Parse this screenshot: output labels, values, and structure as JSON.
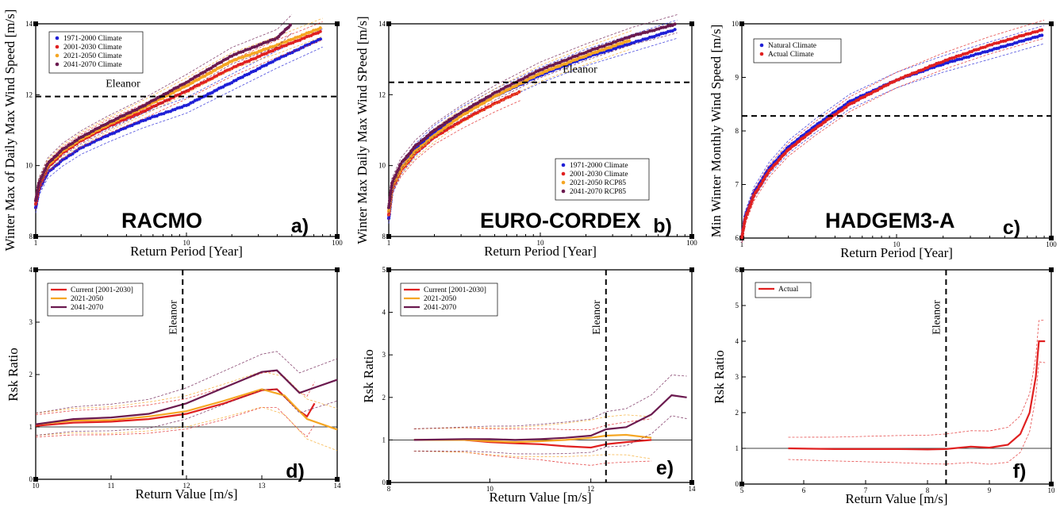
{
  "chart_data": [
    {
      "id": "a",
      "type": "scatter",
      "panel_label": "a)",
      "model_label": "RACMO",
      "xlabel": "Return Period [Year]",
      "ylabel": "Winter Max of Daily Max Wind Speed [m/s]",
      "xscale": "log",
      "xlim": [
        1,
        100
      ],
      "ylim": [
        8,
        14
      ],
      "xticks": [
        "1",
        "10",
        "100"
      ],
      "yticks": [
        "8",
        "10",
        "12",
        "14"
      ],
      "legend_position": "top-left",
      "hline": {
        "y": 11.95,
        "label": "Eleanor"
      },
      "series": [
        {
          "name": "1971-2000 Climate",
          "color": "#1f1fd6",
          "points": [
            [
              1.0,
              8.8
            ],
            [
              1.05,
              9.3
            ],
            [
              1.2,
              9.8
            ],
            [
              1.5,
              10.15
            ],
            [
              2,
              10.5
            ],
            [
              3,
              10.85
            ],
            [
              5,
              11.25
            ],
            [
              10,
              11.7
            ],
            [
              20,
              12.35
            ],
            [
              40,
              13.0
            ],
            [
              80,
              13.6
            ]
          ]
        },
        {
          "name": "2001-2030 Climate",
          "color": "#e02020",
          "points": [
            [
              1.0,
              8.9
            ],
            [
              1.05,
              9.4
            ],
            [
              1.2,
              9.95
            ],
            [
              1.5,
              10.35
            ],
            [
              2,
              10.7
            ],
            [
              3,
              11.1
            ],
            [
              5,
              11.5
            ],
            [
              10,
              12.1
            ],
            [
              20,
              12.75
            ],
            [
              40,
              13.3
            ],
            [
              80,
              13.8
            ]
          ]
        },
        {
          "name": "2021-2050 Climate",
          "color": "#f5a623",
          "points": [
            [
              1.0,
              9.0
            ],
            [
              1.05,
              9.5
            ],
            [
              1.2,
              10.0
            ],
            [
              1.5,
              10.4
            ],
            [
              2,
              10.75
            ],
            [
              3,
              11.15
            ],
            [
              5,
              11.6
            ],
            [
              10,
              12.25
            ],
            [
              20,
              12.95
            ],
            [
              40,
              13.4
            ],
            [
              80,
              13.9
            ]
          ]
        },
        {
          "name": "2041-2070 Climate",
          "color": "#6b1a4f",
          "points": [
            [
              1.0,
              9.0
            ],
            [
              1.05,
              9.5
            ],
            [
              1.2,
              10.05
            ],
            [
              1.5,
              10.45
            ],
            [
              2,
              10.8
            ],
            [
              3,
              11.2
            ],
            [
              5,
              11.65
            ],
            [
              10,
              12.35
            ],
            [
              20,
              13.1
            ],
            [
              40,
              13.6
            ],
            [
              50,
              14.0
            ]
          ]
        }
      ]
    },
    {
      "id": "b",
      "type": "scatter",
      "panel_label": "b)",
      "model_label": "EURO-CORDEX",
      "xlabel": "Return Period [Year]",
      "ylabel": "Winter Max Daily Max Wind SPeed [m/s]",
      "xscale": "log",
      "xlim": [
        1,
        100
      ],
      "ylim": [
        8,
        14
      ],
      "xticks": [
        "1",
        "10",
        "100"
      ],
      "yticks": [
        "8",
        "10",
        "12",
        "14"
      ],
      "legend_position": "bottom-right",
      "hline": {
        "y": 12.35,
        "label": "Eleanor"
      },
      "series": [
        {
          "name": "1971-2000 Climate",
          "color": "#1f1fd6",
          "points": [
            [
              1.0,
              8.5
            ],
            [
              1.05,
              9.3
            ],
            [
              1.2,
              9.9
            ],
            [
              1.5,
              10.45
            ],
            [
              2,
              10.95
            ],
            [
              3,
              11.45
            ],
            [
              5,
              11.95
            ],
            [
              10,
              12.55
            ],
            [
              20,
              13.05
            ],
            [
              40,
              13.45
            ],
            [
              80,
              13.85
            ]
          ]
        },
        {
          "name": "2001-2030 Climate",
          "color": "#e02020",
          "points": [
            [
              1.0,
              8.6
            ],
            [
              1.05,
              9.35
            ],
            [
              1.2,
              9.85
            ],
            [
              1.5,
              10.35
            ],
            [
              2,
              10.8
            ],
            [
              3,
              11.25
            ],
            [
              5,
              11.75
            ],
            [
              7.5,
              12.1
            ]
          ]
        },
        {
          "name": "2021-2050 RCP85",
          "color": "#f5a623",
          "points": [
            [
              1.0,
              8.7
            ],
            [
              1.05,
              9.4
            ],
            [
              1.2,
              9.9
            ],
            [
              1.5,
              10.4
            ],
            [
              2,
              10.85
            ],
            [
              3,
              11.4
            ],
            [
              5,
              11.95
            ],
            [
              10,
              12.6
            ],
            [
              20,
              13.1
            ],
            [
              40,
              13.55
            ]
          ]
        },
        {
          "name": "2041-2070 RCP85",
          "color": "#6b1a4f",
          "points": [
            [
              1.0,
              8.8
            ],
            [
              1.05,
              9.5
            ],
            [
              1.2,
              10.05
            ],
            [
              1.5,
              10.55
            ],
            [
              2,
              11.0
            ],
            [
              3,
              11.5
            ],
            [
              5,
              12.05
            ],
            [
              10,
              12.7
            ],
            [
              20,
              13.2
            ],
            [
              40,
              13.65
            ],
            [
              80,
              14.0
            ]
          ]
        }
      ]
    },
    {
      "id": "c",
      "type": "scatter",
      "panel_label": "c)",
      "model_label": "HADGEM3-A",
      "xlabel": "Return Period [Year]",
      "ylabel": "Min Winter Monthly Wind Speed [m/s]",
      "xscale": "log",
      "xlim": [
        1,
        100
      ],
      "ylim": [
        6,
        10
      ],
      "xticks": [
        "1",
        "10",
        "100"
      ],
      "yticks": [
        "6",
        "7",
        "8",
        "9",
        "10"
      ],
      "legend_position": "top-left",
      "hline": {
        "y": 8.28,
        "label": "Eleanor"
      },
      "series": [
        {
          "name": "Natural Climate",
          "color": "#1f1fd6",
          "points": [
            [
              1.0,
              6.0
            ],
            [
              1.05,
              6.4
            ],
            [
              1.2,
              6.85
            ],
            [
              1.5,
              7.3
            ],
            [
              2,
              7.7
            ],
            [
              3,
              8.1
            ],
            [
              5,
              8.55
            ],
            [
              10,
              8.95
            ],
            [
              20,
              9.25
            ],
            [
              40,
              9.5
            ],
            [
              90,
              9.8
            ]
          ]
        },
        {
          "name": "Actual Climate",
          "color": "#e02020",
          "points": [
            [
              1.0,
              6.0
            ],
            [
              1.05,
              6.35
            ],
            [
              1.2,
              6.8
            ],
            [
              1.5,
              7.25
            ],
            [
              2,
              7.65
            ],
            [
              3,
              8.05
            ],
            [
              5,
              8.5
            ],
            [
              10,
              8.95
            ],
            [
              20,
              9.3
            ],
            [
              40,
              9.6
            ],
            [
              90,
              9.9
            ]
          ]
        }
      ]
    },
    {
      "id": "d",
      "type": "line",
      "panel_label": "d)",
      "xlabel": "Return Value [m/s]",
      "ylabel": "Rsk Ratio",
      "xlim": [
        10,
        14
      ],
      "ylim": [
        0,
        4
      ],
      "xticks": [
        "10",
        "11",
        "12",
        "13",
        "14"
      ],
      "yticks": [
        "0",
        "1",
        "2",
        "3",
        "4"
      ],
      "legend_position": "top-left",
      "vline": {
        "x": 11.95,
        "label": "Eleanor"
      },
      "series": [
        {
          "name": "Current [2001-2030]",
          "color": "#e02020",
          "points": [
            [
              10,
              1.02
            ],
            [
              10.5,
              1.08
            ],
            [
              11,
              1.1
            ],
            [
              11.5,
              1.15
            ],
            [
              12,
              1.25
            ],
            [
              12.5,
              1.45
            ],
            [
              13,
              1.7
            ],
            [
              13.2,
              1.72
            ],
            [
              13.5,
              1.3
            ],
            [
              13.6,
              1.2
            ],
            [
              13.7,
              1.45
            ]
          ]
        },
        {
          "name": "2021-2050",
          "color": "#f5a623",
          "points": [
            [
              10,
              1.05
            ],
            [
              10.5,
              1.12
            ],
            [
              11,
              1.13
            ],
            [
              11.5,
              1.2
            ],
            [
              12,
              1.3
            ],
            [
              12.5,
              1.5
            ],
            [
              13,
              1.72
            ],
            [
              13.3,
              1.6
            ],
            [
              13.6,
              1.15
            ],
            [
              14,
              0.95
            ]
          ]
        },
        {
          "name": "2041-2070",
          "color": "#6b1a4f",
          "points": [
            [
              10,
              1.05
            ],
            [
              10.5,
              1.15
            ],
            [
              11,
              1.18
            ],
            [
              11.5,
              1.25
            ],
            [
              12,
              1.45
            ],
            [
              12.5,
              1.75
            ],
            [
              13,
              2.05
            ],
            [
              13.2,
              2.08
            ],
            [
              13.5,
              1.65
            ],
            [
              14,
              1.9
            ]
          ]
        }
      ]
    },
    {
      "id": "e",
      "type": "line",
      "panel_label": "e)",
      "xlabel": "Return Value [m/s]",
      "ylabel": "Rsk Ratio",
      "xlim": [
        8,
        14
      ],
      "ylim": [
        0,
        5
      ],
      "xticks": [
        "8",
        "10",
        "12",
        "14"
      ],
      "yticks": [
        "0",
        "1",
        "2",
        "3",
        "4",
        "5"
      ],
      "legend_position": "top-left",
      "vline": {
        "x": 12.3,
        "label": "Eleanor"
      },
      "series": [
        {
          "name": "Current [2001-2030]",
          "color": "#e02020",
          "points": [
            [
              8.5,
              1.0
            ],
            [
              9.5,
              1.0
            ],
            [
              10,
              0.95
            ],
            [
              10.5,
              0.92
            ],
            [
              11,
              0.9
            ],
            [
              11.5,
              0.85
            ],
            [
              12,
              0.82
            ],
            [
              12.3,
              0.9
            ],
            [
              12.7,
              0.95
            ],
            [
              13.2,
              1.0
            ]
          ]
        },
        {
          "name": "2021-2050",
          "color": "#f5a623",
          "points": [
            [
              8.5,
              1.0
            ],
            [
              9.5,
              1.0
            ],
            [
              10,
              0.97
            ],
            [
              10.5,
              0.95
            ],
            [
              11,
              0.97
            ],
            [
              11.5,
              1.0
            ],
            [
              12,
              1.05
            ],
            [
              12.3,
              1.1
            ],
            [
              12.7,
              1.12
            ],
            [
              13.2,
              1.05
            ]
          ]
        },
        {
          "name": "2041-2070",
          "color": "#6b1a4f",
          "points": [
            [
              8.5,
              1.0
            ],
            [
              9.5,
              1.02
            ],
            [
              10,
              1.02
            ],
            [
              10.5,
              1.0
            ],
            [
              11,
              1.02
            ],
            [
              11.5,
              1.05
            ],
            [
              12,
              1.1
            ],
            [
              12.3,
              1.25
            ],
            [
              12.7,
              1.3
            ],
            [
              13.2,
              1.6
            ],
            [
              13.6,
              2.05
            ],
            [
              13.9,
              2.0
            ]
          ]
        }
      ]
    },
    {
      "id": "f",
      "type": "line",
      "panel_label": "f)",
      "xlabel": "Return Value [m/s]",
      "ylabel": "Rsk Ratio",
      "xlim": [
        5,
        10
      ],
      "ylim": [
        0,
        6
      ],
      "xticks": [
        "5",
        "6",
        "7",
        "8",
        "9",
        "10"
      ],
      "yticks": [
        "0",
        "1",
        "2",
        "3",
        "4",
        "5",
        "6"
      ],
      "legend_position": "top-left",
      "vline": {
        "x": 8.3,
        "label": "Eleanor"
      },
      "series": [
        {
          "name": "Actual",
          "color": "#e02020",
          "points": [
            [
              5.75,
              1.0
            ],
            [
              6.5,
              0.98
            ],
            [
              7,
              0.98
            ],
            [
              7.5,
              0.98
            ],
            [
              8,
              0.97
            ],
            [
              8.3,
              0.98
            ],
            [
              8.7,
              1.05
            ],
            [
              9,
              1.02
            ],
            [
              9.3,
              1.1
            ],
            [
              9.5,
              1.4
            ],
            [
              9.65,
              2.0
            ],
            [
              9.75,
              3.0
            ],
            [
              9.8,
              4.0
            ],
            [
              9.9,
              4.0
            ]
          ]
        }
      ]
    }
  ]
}
